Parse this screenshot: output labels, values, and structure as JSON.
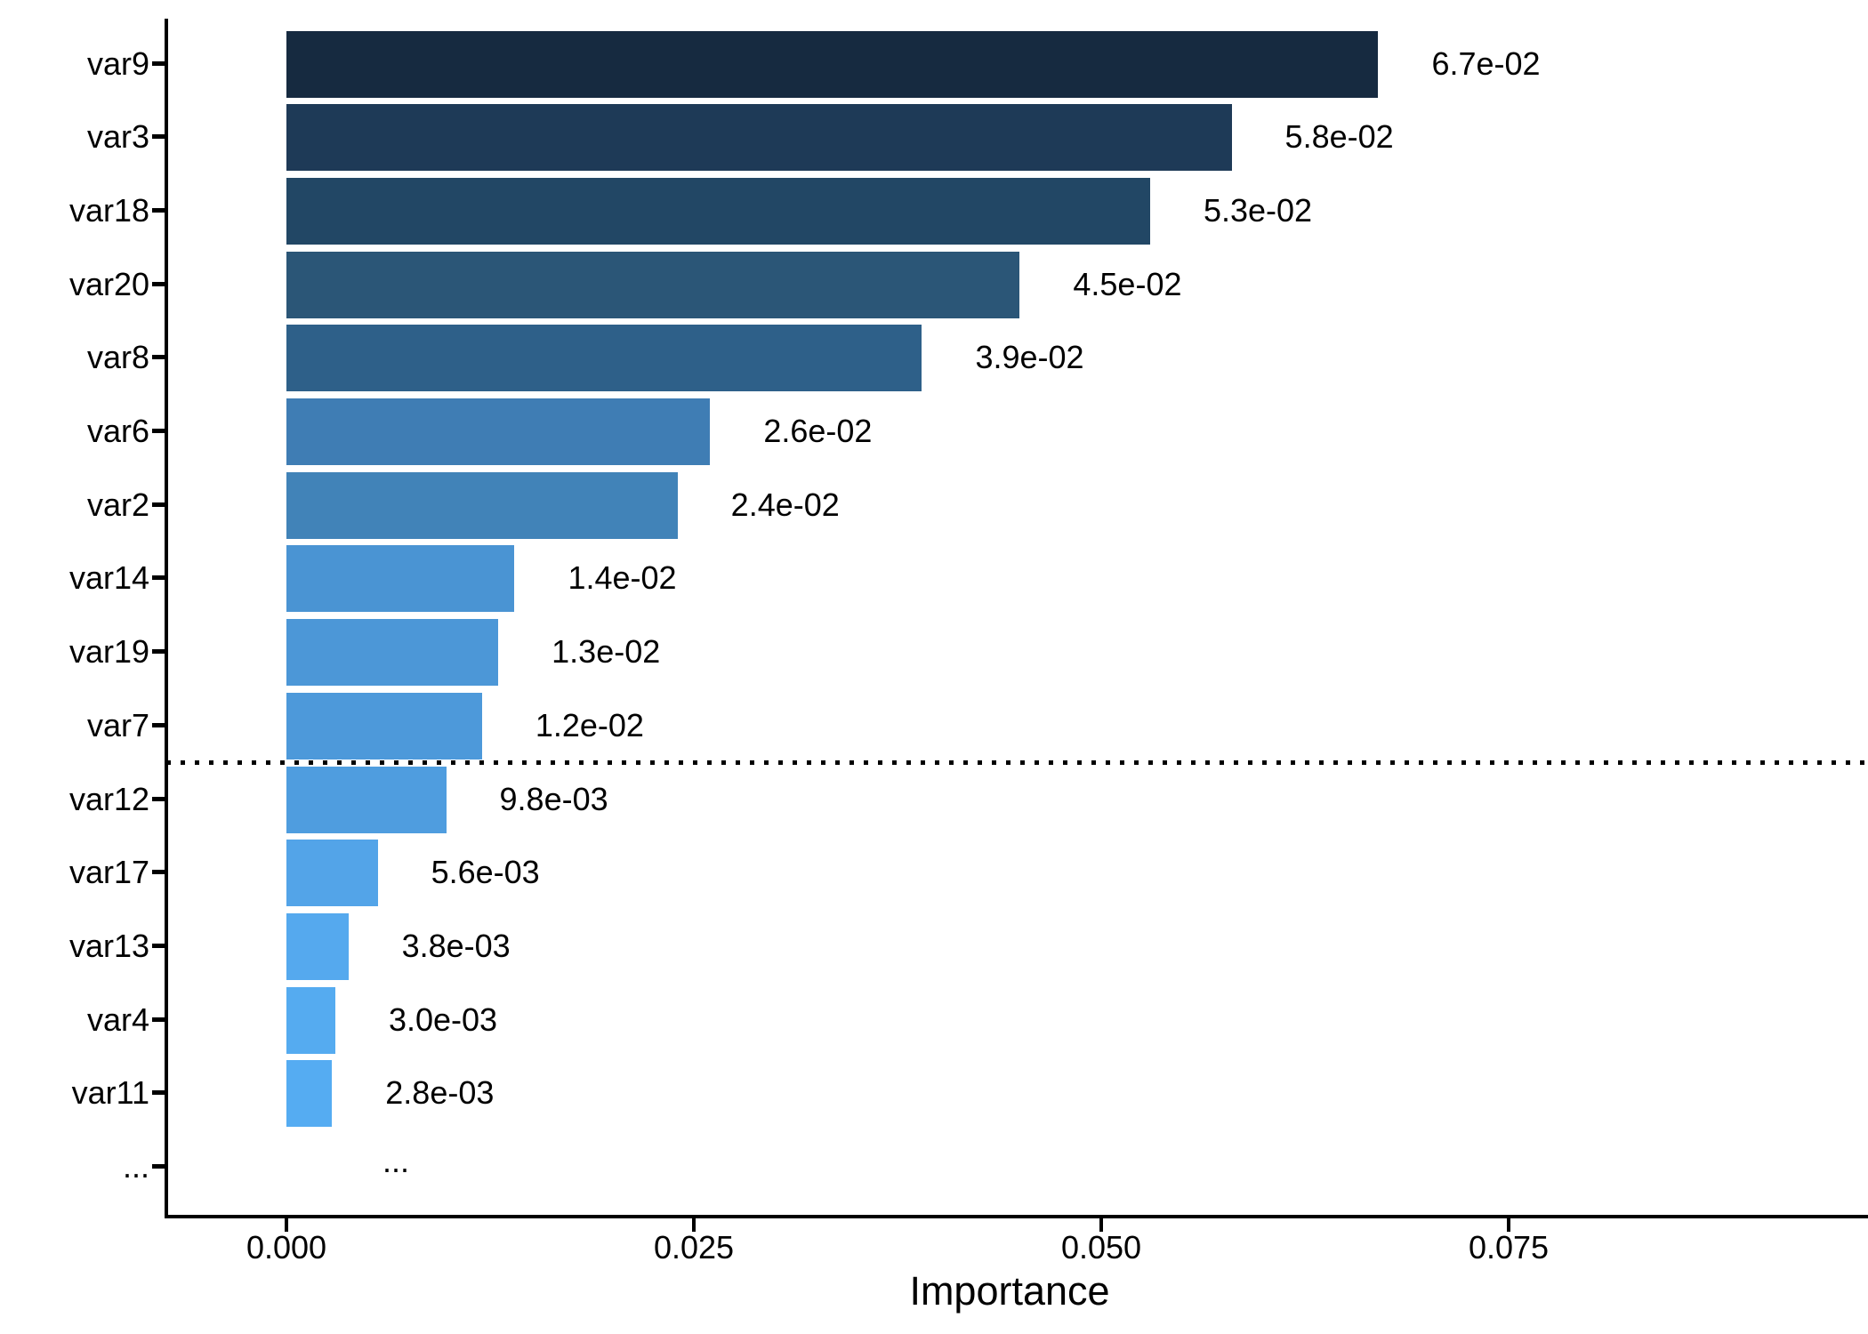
{
  "chart_data": {
    "type": "bar",
    "orientation": "horizontal",
    "title": "",
    "xlabel": "Importance",
    "ylabel": "",
    "grid": false,
    "legend": "none",
    "xlim": [
      -0.0072,
      0.097
    ],
    "x_axis": {
      "ticks": [
        {
          "label": "0.000",
          "value": 0.0
        },
        {
          "label": "0.025",
          "value": 0.025
        },
        {
          "label": "0.050",
          "value": 0.05
        },
        {
          "label": "0.075",
          "value": 0.075
        }
      ]
    },
    "bars": [
      {
        "category": "var9",
        "value": 0.067,
        "label": "6.7e-02",
        "color": "#162A40"
      },
      {
        "category": "var3",
        "value": 0.058,
        "label": "5.8e-02",
        "color": "#1E3A57"
      },
      {
        "category": "var18",
        "value": 0.053,
        "label": "5.3e-02",
        "color": "#224765"
      },
      {
        "category": "var20",
        "value": 0.045,
        "label": "4.5e-02",
        "color": "#2B5677"
      },
      {
        "category": "var8",
        "value": 0.039,
        "label": "3.9e-02",
        "color": "#2E6089"
      },
      {
        "category": "var6",
        "value": 0.026,
        "label": "2.6e-02",
        "color": "#3F7DB4"
      },
      {
        "category": "var2",
        "value": 0.024,
        "label": "2.4e-02",
        "color": "#4183B8"
      },
      {
        "category": "var14",
        "value": 0.014,
        "label": "1.4e-02",
        "color": "#4A94D3"
      },
      {
        "category": "var19",
        "value": 0.013,
        "label": "1.3e-02",
        "color": "#4C97D7"
      },
      {
        "category": "var7",
        "value": 0.012,
        "label": "1.2e-02",
        "color": "#4D99DA"
      },
      {
        "category": "var12",
        "value": 0.0098,
        "label": "9.8e-03",
        "color": "#4F9DDF"
      },
      {
        "category": "var17",
        "value": 0.0056,
        "label": "5.6e-03",
        "color": "#53A4E8"
      },
      {
        "category": "var13",
        "value": 0.0038,
        "label": "3.8e-03",
        "color": "#55A9EE"
      },
      {
        "category": "var4",
        "value": 0.003,
        "label": "3.0e-03",
        "color": "#55ABF0"
      },
      {
        "category": "var11",
        "value": 0.0028,
        "label": "2.8e-03",
        "color": "#55ACF2"
      },
      {
        "category": "...",
        "value": null,
        "label": "...",
        "color": null
      }
    ],
    "threshold_line": {
      "style": "dotted",
      "color": "#000000",
      "after_category": "var7"
    }
  },
  "colors": {
    "background": "#ffffff",
    "axis": "#000000",
    "text": "#000000"
  }
}
